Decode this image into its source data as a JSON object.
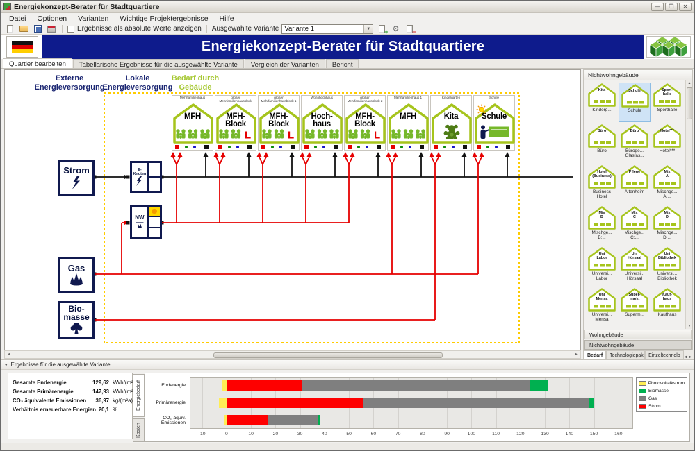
{
  "window": {
    "title": "Energiekonzept-Berater für Stadtquartiere"
  },
  "menu": {
    "items": [
      "Datei",
      "Optionen",
      "Varianten",
      "Wichtige Projektergebnisse",
      "Hilfe"
    ]
  },
  "toolbar": {
    "checkbox_label": "Ergebnisse als absolute Werte anzeigen",
    "checkbox_checked": false,
    "variant_label": "Ausgewählte Variante",
    "variant_value": "Variante 1"
  },
  "header": {
    "title": "Energiekonzept-Berater für Stadtquartiere"
  },
  "main_tabs": [
    {
      "label": "Quartier bearbeiten",
      "active": true
    },
    {
      "label": "Tabellarische Ergebnisse für die ausgewählte Variante",
      "active": false
    },
    {
      "label": "Vergleich der Varianten",
      "active": false
    },
    {
      "label": "Bericht",
      "active": false
    }
  ],
  "canvas": {
    "column_labels": [
      {
        "text": "Externe\nEnergieversorgung",
        "color": "#1b2672"
      },
      {
        "text": "Lokale\nEnergieversorgung",
        "color": "#1b2672"
      },
      {
        "text": "Bedarf durch\nGebäude",
        "color": "#a6c832"
      }
    ],
    "sources": [
      {
        "id": "strom",
        "label": "Strom"
      },
      {
        "id": "gas",
        "label": "Gas"
      },
      {
        "id": "biomasse",
        "label": "Bio-\nmasse"
      }
    ],
    "nodes": [
      {
        "id": "eknoten",
        "label": "E-\nKnoten"
      },
      {
        "id": "nw",
        "label": "NW"
      }
    ],
    "buildings": [
      {
        "id": "b1",
        "caption": "Mehrfamilienhaus",
        "label": "MFH",
        "glyph": "families",
        "l_marker": false,
        "sun": false
      },
      {
        "id": "b2",
        "caption": "großer Mehrfamilienhausblock",
        "label": "MFH-\nBlock",
        "glyph": "families",
        "l_marker": true,
        "sun": false
      },
      {
        "id": "b3",
        "caption": "großer Mehrfamilienhausblock 1",
        "label": "MFH-\nBlock",
        "glyph": "families",
        "l_marker": true,
        "sun": false
      },
      {
        "id": "b4",
        "caption": "Wohnhochhaus",
        "label": "Hoch-\nhaus",
        "glyph": "families",
        "l_marker": false,
        "sun": false
      },
      {
        "id": "b5",
        "caption": "großer Mehrfamilienhausblock 2",
        "label": "MFH-\nBlock",
        "glyph": "families",
        "l_marker": true,
        "sun": false
      },
      {
        "id": "b6",
        "caption": "Mehrfamilienhaus 1",
        "label": "MFH",
        "glyph": "families",
        "l_marker": false,
        "sun": false
      },
      {
        "id": "b7",
        "caption": "Kindergarten",
        "label": "Kita",
        "glyph": "teddy",
        "l_marker": false,
        "sun": false
      },
      {
        "id": "b8",
        "caption": "Schule",
        "label": "Schule",
        "glyph": "teacher",
        "l_marker": false,
        "sun": true
      }
    ],
    "links": [
      {
        "from": "strom",
        "to": [
          "eknoten"
        ],
        "color": "black"
      },
      {
        "from": "eknoten",
        "to": [
          "b1",
          "b2",
          "b3",
          "b4",
          "b5",
          "b6",
          "b7",
          "b8"
        ],
        "color": "black"
      },
      {
        "from": "nw",
        "to": [
          "b1",
          "b2",
          "b3",
          "b4",
          "b5"
        ],
        "color": "red"
      },
      {
        "from": "gas",
        "to": [
          "nw",
          "b6",
          "b8"
        ],
        "color": "red"
      },
      {
        "from": "biomasse",
        "to": [
          "b7"
        ],
        "color": "red"
      }
    ]
  },
  "sidebar": {
    "header": "Nichtwohngebäude",
    "items": [
      {
        "icon_label": "Kita",
        "caption": "Kinderg...",
        "selected": false
      },
      {
        "icon_label": "Schule",
        "caption": "Schule",
        "selected": true
      },
      {
        "icon_label": "Sport-\nhalle",
        "caption": "Sporthalle",
        "selected": false
      },
      {
        "icon_label": "Büro",
        "caption": "Büro",
        "selected": false
      },
      {
        "icon_label": "Büro",
        "caption": "Büroge...\nGlasfas...",
        "selected": false
      },
      {
        "icon_label": "Hotel***",
        "caption": "Hotel***",
        "selected": false
      },
      {
        "icon_label": "Hotel\n(Business)",
        "caption": "Business\nHotel",
        "selected": false
      },
      {
        "icon_label": "Pflege",
        "caption": "Altenheim",
        "selected": false
      },
      {
        "icon_label": "Mix\nA",
        "caption": "Mischge...\nA:...",
        "selected": false
      },
      {
        "icon_label": "Mix\nB",
        "caption": "Mischge...\nB:...",
        "selected": false
      },
      {
        "icon_label": "Mix\nC",
        "caption": "Mischge...\nC:...",
        "selected": false
      },
      {
        "icon_label": "Mix\nD",
        "caption": "Mischge...\nD:...",
        "selected": false
      },
      {
        "icon_label": "Uni\nLabor",
        "caption": "Universi...\nLabor",
        "selected": false
      },
      {
        "icon_label": "Uni\nHörsaal",
        "caption": "Universi...\nHörsaal",
        "selected": false
      },
      {
        "icon_label": "Uni\nBibliothek",
        "caption": "Universi...\nBibliothek",
        "selected": false
      },
      {
        "icon_label": "Uni\nMensa",
        "caption": "Universi...\nMensa",
        "selected": false
      },
      {
        "icon_label": "Super-\nmarkt",
        "caption": "Superm...",
        "selected": false
      },
      {
        "icon_label": "Kauf-\nhaus",
        "caption": "Kaufhaus",
        "selected": false
      }
    ],
    "group_bars": [
      {
        "label": "Wohngebäude",
        "selected": false
      },
      {
        "label": "Nichtwohngebäude",
        "selected": true
      }
    ],
    "bottom_tabs": [
      {
        "label": "Bedarf",
        "active": true
      },
      {
        "label": "Technologiepakete",
        "active": false
      },
      {
        "label": "Einzeltechnolo",
        "active": false
      }
    ]
  },
  "results": {
    "header": "Ergebnisse für die ausgewählte Variante",
    "stats": [
      {
        "label": "Gesamte Endenergie",
        "value": "129,62",
        "unit": "kWh/(m²a)"
      },
      {
        "label": "Gesamte Primärenergie",
        "value": "147,93",
        "unit": "kWh/(m²a)"
      },
      {
        "label": "CO₂ äquivalente Emissionen",
        "value": "36,97",
        "unit": "kg/(m²a)"
      },
      {
        "label": "Verhältnis erneuerbare Energien",
        "value": "20,1",
        "unit": "%"
      }
    ],
    "vertical_tabs": [
      {
        "label": "Energiebedarf",
        "active": true
      },
      {
        "label": "Kosten",
        "active": false
      }
    ]
  },
  "chart_data": {
    "type": "bar",
    "orientation": "horizontal",
    "title": "",
    "categories": [
      "Endenergie",
      "Primärenergie",
      "CO₂-äquiv.\nEmissionen"
    ],
    "series": [
      {
        "name": "Photovoltaikstrom",
        "color": "#ffee55",
        "values": [
          -2,
          -3,
          -0.7
        ]
      },
      {
        "name": "Strom",
        "color": "#fe0000",
        "values": [
          31,
          56,
          17
        ]
      },
      {
        "name": "Gas",
        "color": "#7f7f7f",
        "values": [
          93,
          92,
          20.5
        ]
      },
      {
        "name": "Biomasse",
        "color": "#00b050",
        "values": [
          7,
          2,
          0.7
        ]
      }
    ],
    "xlim": [
      -15,
      166
    ],
    "ticks_from": -10,
    "ticks_to": 160,
    "tick_step": 10,
    "grid": true,
    "legend": [
      "Photovoltaikstrom",
      "Biomasse",
      "Gas",
      "Strom"
    ],
    "legend_position": "right"
  }
}
